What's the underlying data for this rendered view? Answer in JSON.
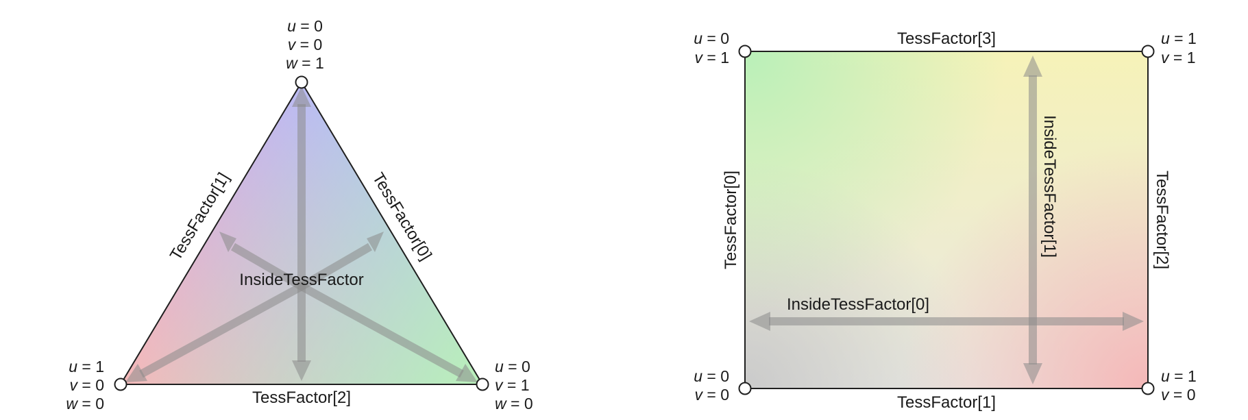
{
  "triangle": {
    "vertices": {
      "top": {
        "lines": [
          {
            "var": "u",
            "val": "0"
          },
          {
            "var": "v",
            "val": "0"
          },
          {
            "var": "w",
            "val": "1"
          }
        ]
      },
      "bottom_left": {
        "lines": [
          {
            "var": "u",
            "val": "1"
          },
          {
            "var": "v",
            "val": "0"
          },
          {
            "var": "w",
            "val": "0"
          }
        ]
      },
      "bottom_right": {
        "lines": [
          {
            "var": "u",
            "val": "0"
          },
          {
            "var": "v",
            "val": "1"
          },
          {
            "var": "w",
            "val": "0"
          }
        ]
      }
    },
    "edges": {
      "left": "TessFactor[1]",
      "right": "TessFactor[0]",
      "bottom": "TessFactor[2]"
    },
    "inside": "InsideTessFactor",
    "colors": {
      "top": "#b9b9f7",
      "bottom_left": "#f7b8b8",
      "bottom_right": "#b9f0b9"
    }
  },
  "quad": {
    "vertices": {
      "top_left": {
        "lines": [
          {
            "var": "u",
            "val": "0"
          },
          {
            "var": "v",
            "val": "1"
          }
        ]
      },
      "top_right": {
        "lines": [
          {
            "var": "u",
            "val": "1"
          },
          {
            "var": "v",
            "val": "1"
          }
        ]
      },
      "bottom_left": {
        "lines": [
          {
            "var": "u",
            "val": "0"
          },
          {
            "var": "v",
            "val": "0"
          }
        ]
      },
      "bottom_right": {
        "lines": [
          {
            "var": "u",
            "val": "1"
          },
          {
            "var": "v",
            "val": "0"
          }
        ]
      }
    },
    "edges": {
      "top": "TessFactor[3]",
      "left": "TessFactor[0]",
      "right": "TessFactor[2]",
      "bottom": "TessFactor[1]"
    },
    "inside_u": "InsideTessFactor[0]",
    "inside_v": "InsideTessFactor[1]",
    "colors": {
      "top_left": "#bdf2bd",
      "top_right": "#f6f2b8",
      "bottom_left": "#cfcfcf",
      "bottom_right": "#f5bdbd"
    }
  }
}
